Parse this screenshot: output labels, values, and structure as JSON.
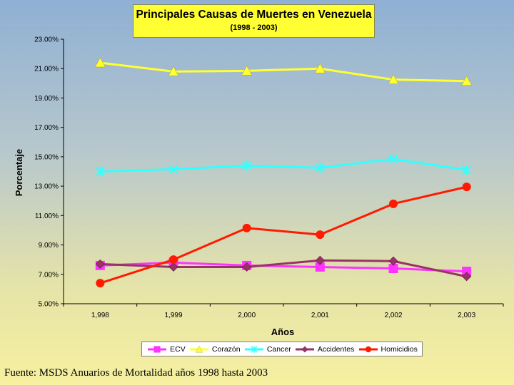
{
  "chart_data": {
    "type": "line",
    "title": "Principales Causas de Muertes en Venezuela",
    "subtitle": "(1998 - 2003)",
    "xlabel": "Años",
    "ylabel": "Porcentaje",
    "categories": [
      "1,998",
      "1,999",
      "2,000",
      "2,001",
      "2,002",
      "2,003"
    ],
    "y_ticks": [
      "5.00%",
      "7.00%",
      "9.00%",
      "11.00%",
      "13.00%",
      "15.00%",
      "17.00%",
      "19.00%",
      "21.00%",
      "23.00%"
    ],
    "ylim": [
      5,
      23
    ],
    "grid": false,
    "legend_position": "bottom",
    "series": [
      {
        "name": "ECV",
        "color": "#ff33ff",
        "marker": "square",
        "values": [
          7.6,
          7.8,
          7.6,
          7.5,
          7.4,
          7.2
        ]
      },
      {
        "name": "Corazón",
        "color": "#ffff33",
        "marker": "triangle",
        "values": [
          21.4,
          20.8,
          20.85,
          21.0,
          20.25,
          20.15
        ]
      },
      {
        "name": "Cancer",
        "color": "#33ffff",
        "marker": "x",
        "values": [
          14.0,
          14.15,
          14.4,
          14.25,
          14.85,
          14.1
        ]
      },
      {
        "name": "Accidentes",
        "color": "#993366",
        "marker": "diamond",
        "values": [
          7.7,
          7.5,
          7.5,
          7.95,
          7.9,
          6.85
        ]
      },
      {
        "name": "Homicidios",
        "color": "#ff1a00",
        "marker": "circle",
        "values": [
          6.4,
          8.0,
          10.15,
          9.7,
          11.8,
          12.95
        ]
      }
    ]
  },
  "footer": {
    "source": "Fuente: MSDS Anuarios de Mortalidad años 1998 hasta 2003"
  }
}
